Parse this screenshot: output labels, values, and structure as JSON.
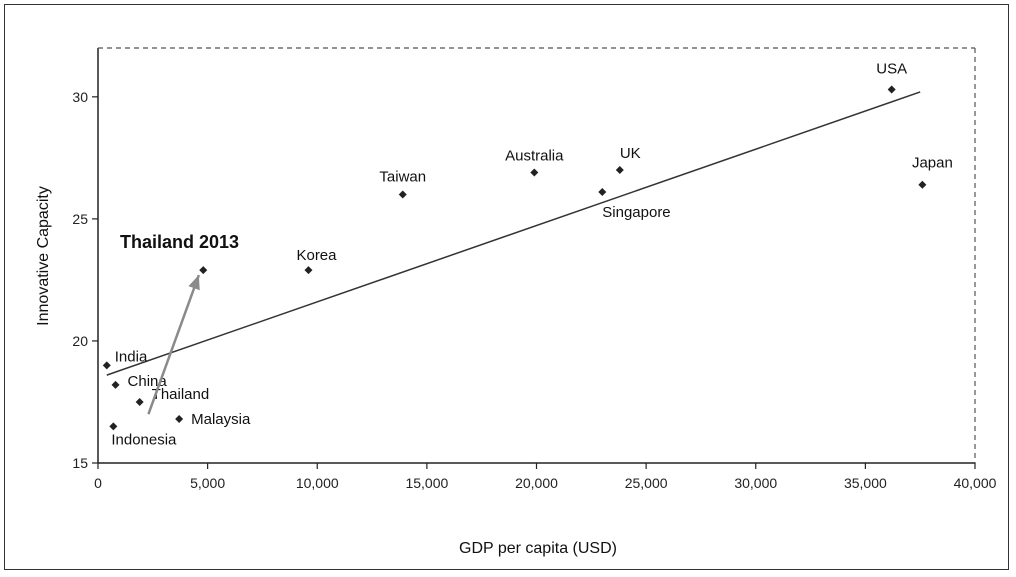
{
  "chart_data": {
    "type": "scatter",
    "title": "",
    "xlabel": "GDP per capita (USD)",
    "ylabel": "Innovative Capacity",
    "xlim": [
      0,
      40000
    ],
    "ylim": [
      15,
      32
    ],
    "x_ticks": [
      0,
      5000,
      10000,
      15000,
      20000,
      25000,
      30000,
      35000,
      40000
    ],
    "x_tick_labels": [
      "0",
      "5,000",
      "10,000",
      "15,000",
      "20,000",
      "25,000",
      "30,000",
      "35,000",
      "40,000"
    ],
    "y_ticks": [
      15,
      20,
      25,
      30
    ],
    "y_tick_labels": [
      "15",
      "20",
      "25",
      "30"
    ],
    "grid": false,
    "legend": "none",
    "series": [
      {
        "points": [
          {
            "label": "India",
            "x": 400,
            "y": 19.0
          },
          {
            "label": "China",
            "x": 800,
            "y": 18.2
          },
          {
            "label": "Indonesia",
            "x": 700,
            "y": 16.5
          },
          {
            "label": "Thailand",
            "x": 1900,
            "y": 17.5
          },
          {
            "label": "Malaysia",
            "x": 3700,
            "y": 16.8
          },
          {
            "label": "",
            "x": 4800,
            "y": 22.9
          },
          {
            "label": "Korea",
            "x": 9600,
            "y": 22.9
          },
          {
            "label": "Taiwan",
            "x": 13900,
            "y": 26.0
          },
          {
            "label": "Australia",
            "x": 19900,
            "y": 26.9
          },
          {
            "label": "UK",
            "x": 23800,
            "y": 27.0
          },
          {
            "label": "Singapore",
            "x": 23000,
            "y": 26.1
          },
          {
            "label": "USA",
            "x": 36200,
            "y": 30.3
          },
          {
            "label": "Japan",
            "x": 37600,
            "y": 26.4
          }
        ]
      }
    ],
    "trend_line": {
      "x": [
        400,
        37500
      ],
      "y": [
        18.6,
        30.2
      ]
    },
    "annotation": {
      "text": "Thailand 2013",
      "arrow_from": {
        "x": 2300,
        "y": 17.0
      },
      "arrow_to": {
        "x": 4600,
        "y": 22.7
      }
    },
    "colors": {
      "marker": "#222222",
      "trend": "#333333",
      "arrow": "#8a8a8a",
      "frame": "#555555"
    }
  }
}
